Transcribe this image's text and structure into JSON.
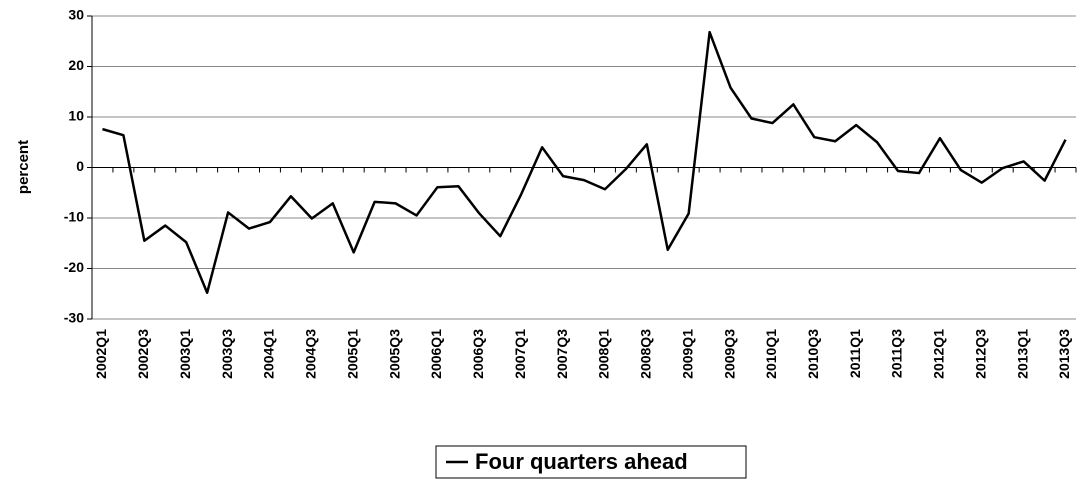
{
  "chart_data": {
    "type": "line",
    "y_label": "percent",
    "categories": [
      "2002Q1",
      null,
      "2002Q3",
      null,
      "2003Q1",
      null,
      "2003Q3",
      null,
      "2004Q1",
      null,
      "2004Q3",
      null,
      "2005Q1",
      null,
      "2005Q3",
      null,
      "2006Q1",
      null,
      "2006Q3",
      null,
      "2007Q1",
      null,
      "2007Q3",
      null,
      "2008Q1",
      null,
      "2008Q3",
      null,
      "2009Q1",
      null,
      "2009Q3",
      null,
      "2010Q1",
      null,
      "2010Q3",
      null,
      "2011Q1",
      null,
      "2011Q3",
      null,
      "2012Q1",
      null,
      "2012Q3",
      null,
      "2013Q1",
      null,
      "2013Q3"
    ],
    "series": [
      {
        "name": "Four quarters ahead",
        "color": "#000000",
        "values": [
          7.6,
          6.4,
          -14.5,
          -11.5,
          -14.8,
          -24.8,
          -8.9,
          -12.1,
          -10.8,
          -5.7,
          -10.1,
          -7.1,
          -16.8,
          -6.8,
          -7.1,
          -9.5,
          -3.9,
          -3.7,
          -9.1,
          -13.6,
          -5.3,
          4.0,
          -1.7,
          -2.5,
          -4.3,
          -0.3,
          4.6,
          -16.3,
          -9.1,
          26.8,
          15.8,
          9.7,
          8.8,
          12.5,
          6.0,
          5.2,
          8.4,
          5.0,
          -0.7,
          -1.1,
          5.8,
          -0.5,
          -3.0,
          -0.1,
          1.2,
          -2.6,
          5.5
        ]
      }
    ],
    "ylim": [
      -30,
      30
    ],
    "yticks": [
      -30,
      -20,
      -10,
      0,
      10,
      20,
      30
    ],
    "grid": true,
    "legend": "bottom"
  }
}
